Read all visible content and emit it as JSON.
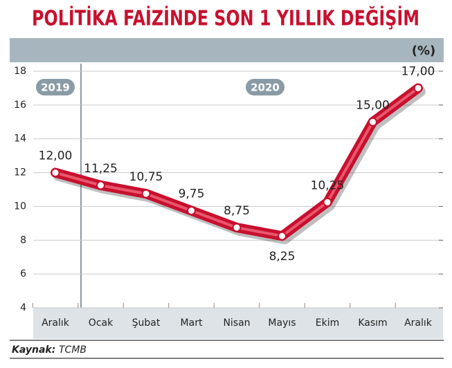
{
  "chart_data": {
    "type": "line",
    "title": "POLİTİKA FAİZİNDE SON 1 YILLIK DEĞİŞİM",
    "unit_label": "(%)",
    "year_labels": [
      "2019",
      "2020"
    ],
    "categories": [
      "Aralık",
      "Ocak",
      "Şubat",
      "Mart",
      "Nisan",
      "Mayıs",
      "Ekim",
      "Kasım",
      "Aralık"
    ],
    "values": [
      12,
      11.25,
      10.75,
      9.75,
      8.75,
      8.25,
      10.25,
      15,
      17
    ],
    "value_labels": [
      "12,00",
      "11,25",
      "10,75",
      "9,75",
      "8,75",
      "8,25",
      "10,25",
      "15,00",
      "17,00"
    ],
    "color": "#c8102e",
    "ylim": [
      4,
      18
    ],
    "yticks": [
      4,
      6,
      8,
      10,
      12,
      14,
      16,
      18
    ],
    "grid": true,
    "source_label": "Kaynak:",
    "source": "TCMB"
  }
}
